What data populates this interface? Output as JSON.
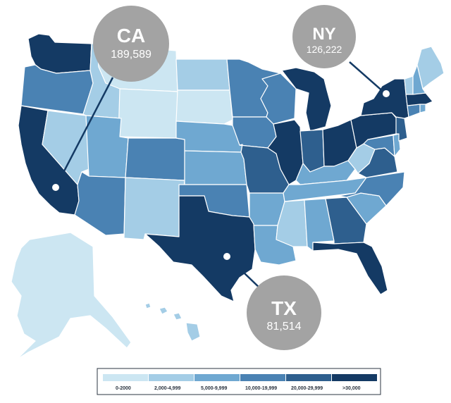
{
  "colors": {
    "c0": "#cce6f2",
    "c1": "#a4cde6",
    "c2": "#6fa8d1",
    "c3": "#4a82b3",
    "c4": "#2e5f8e",
    "c5": "#143a64",
    "bubble": "#a3a3a3",
    "white": "#ffffff"
  },
  "legend": {
    "items": [
      {
        "label": "0-2000",
        "color_key": "c0"
      },
      {
        "label": "2,000-4,999",
        "color_key": "c1"
      },
      {
        "label": "5,000-9,999",
        "color_key": "c2"
      },
      {
        "label": "10,000-19,999",
        "color_key": "c3"
      },
      {
        "label": "20,000-29,999",
        "color_key": "c4"
      },
      {
        "label": ">30,000",
        "color_key": "c5"
      }
    ]
  },
  "callouts": [
    {
      "abbr": "CA",
      "value": "189,589"
    },
    {
      "abbr": "NY",
      "value": "126,222"
    },
    {
      "abbr": "TX",
      "value": "81,514"
    }
  ],
  "states": [
    {
      "id": "WA",
      "color": "c5"
    },
    {
      "id": "OR",
      "color": "c3"
    },
    {
      "id": "CA",
      "color": "c5"
    },
    {
      "id": "ID",
      "color": "c1"
    },
    {
      "id": "NV",
      "color": "c1"
    },
    {
      "id": "MT",
      "color": "c0"
    },
    {
      "id": "WY",
      "color": "c0"
    },
    {
      "id": "UT",
      "color": "c2"
    },
    {
      "id": "AZ",
      "color": "c3"
    },
    {
      "id": "CO",
      "color": "c3"
    },
    {
      "id": "NM",
      "color": "c1"
    },
    {
      "id": "ND",
      "color": "c1"
    },
    {
      "id": "SD",
      "color": "c0"
    },
    {
      "id": "NE",
      "color": "c2"
    },
    {
      "id": "KS",
      "color": "c2"
    },
    {
      "id": "OK",
      "color": "c3"
    },
    {
      "id": "TX",
      "color": "c5"
    },
    {
      "id": "MN",
      "color": "c3"
    },
    {
      "id": "IA",
      "color": "c3"
    },
    {
      "id": "MO",
      "color": "c4"
    },
    {
      "id": "AR",
      "color": "c2"
    },
    {
      "id": "LA",
      "color": "c2"
    },
    {
      "id": "WI",
      "color": "c3"
    },
    {
      "id": "IL",
      "color": "c5"
    },
    {
      "id": "MI",
      "color": "c5"
    },
    {
      "id": "IN",
      "color": "c4"
    },
    {
      "id": "OH",
      "color": "c5"
    },
    {
      "id": "KY",
      "color": "c2"
    },
    {
      "id": "TN",
      "color": "c2"
    },
    {
      "id": "MS",
      "color": "c1"
    },
    {
      "id": "AL",
      "color": "c2"
    },
    {
      "id": "GA",
      "color": "c4"
    },
    {
      "id": "FL",
      "color": "c5"
    },
    {
      "id": "SC",
      "color": "c2"
    },
    {
      "id": "NC",
      "color": "c3"
    },
    {
      "id": "VA",
      "color": "c4"
    },
    {
      "id": "WV",
      "color": "c1"
    },
    {
      "id": "PA",
      "color": "c5"
    },
    {
      "id": "NY",
      "color": "c5"
    },
    {
      "id": "NJ",
      "color": "c4"
    },
    {
      "id": "DE",
      "color": "c2"
    },
    {
      "id": "MD",
      "color": "c3"
    },
    {
      "id": "CT",
      "color": "c3"
    },
    {
      "id": "RI",
      "color": "c2"
    },
    {
      "id": "MA",
      "color": "c5"
    },
    {
      "id": "VT",
      "color": "c1"
    },
    {
      "id": "NH",
      "color": "c2"
    },
    {
      "id": "ME",
      "color": "c1"
    },
    {
      "id": "AK",
      "color": "c0"
    },
    {
      "id": "HI",
      "color": "c1"
    }
  ]
}
